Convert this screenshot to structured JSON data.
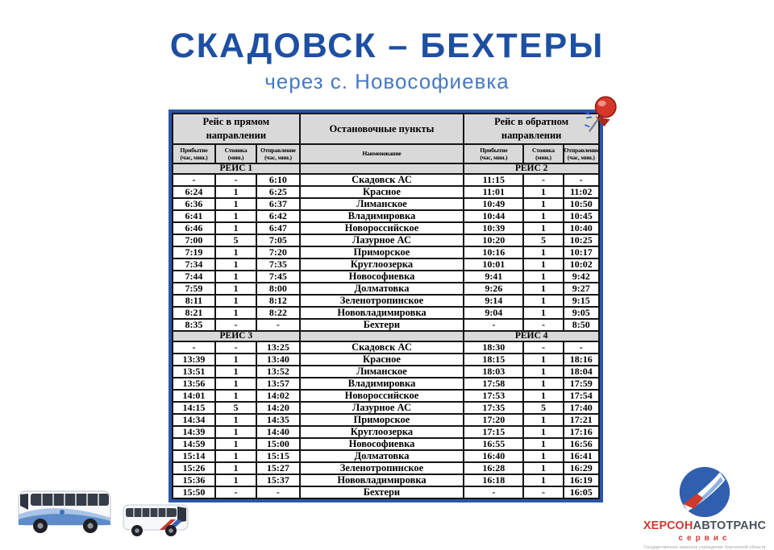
{
  "page": {
    "title": "СКАДОВСК – БЕХТЕРЫ",
    "subtitle": "через с. Новософиевка"
  },
  "table": {
    "header": {
      "forward": "Рейс в прямом\nнаправлении",
      "stops": "Остановочные пункты",
      "backward": "Рейс в обратном\nнаправлении",
      "sub": [
        "Прибытие\n(час, мин.)",
        "Стоянка\n(мин.)",
        "Отправление\n(час, мин.)",
        "Наименование",
        "Прибытие\n(час, мин.)",
        "Стоянка\n(мин.)",
        "Отправление\n(час, мин.)"
      ]
    },
    "sections": [
      {
        "forward_label": "РЕЙС 1",
        "backward_label": "РЕЙС 2",
        "rows": [
          [
            "-",
            "-",
            "6:10",
            "Скадовск АС",
            "11:15",
            "-",
            "-"
          ],
          [
            "6:24",
            "1",
            "6:25",
            "Красное",
            "11:01",
            "1",
            "11:02"
          ],
          [
            "6:36",
            "1",
            "6:37",
            "Лиманское",
            "10:49",
            "1",
            "10:50"
          ],
          [
            "6:41",
            "1",
            "6:42",
            "Владимировка",
            "10:44",
            "1",
            "10:45"
          ],
          [
            "6:46",
            "1",
            "6:47",
            "Новороссийское",
            "10:39",
            "1",
            "10:40"
          ],
          [
            "7:00",
            "5",
            "7:05",
            "Лазурное АС",
            "10:20",
            "5",
            "10:25"
          ],
          [
            "7:19",
            "1",
            "7:20",
            "Приморское",
            "10:16",
            "1",
            "10:17"
          ],
          [
            "7:34",
            "1",
            "7:35",
            "Круглоозерка",
            "10:01",
            "1",
            "10:02"
          ],
          [
            "7:44",
            "1",
            "7:45",
            "Новософиевка",
            "9:41",
            "1",
            "9:42"
          ],
          [
            "7:59",
            "1",
            "8:00",
            "Долматовка",
            "9:26",
            "1",
            "9:27"
          ],
          [
            "8:11",
            "1",
            "8:12",
            "Зеленотропинское",
            "9:14",
            "1",
            "9:15"
          ],
          [
            "8:21",
            "1",
            "8:22",
            "Нововладимировка",
            "9:04",
            "1",
            "9:05"
          ],
          [
            "8:35",
            "-",
            "-",
            "Бехтери",
            "-",
            "-",
            "8:50"
          ]
        ]
      },
      {
        "forward_label": "РЕЙС 3",
        "backward_label": "РЕЙС 4",
        "rows": [
          [
            "-",
            "-",
            "13:25",
            "Скадовск АС",
            "18:30",
            "-",
            "-"
          ],
          [
            "13:39",
            "1",
            "13:40",
            "Красное",
            "18:15",
            "1",
            "18:16"
          ],
          [
            "13:51",
            "1",
            "13:52",
            "Лиманское",
            "18:03",
            "1",
            "18:04"
          ],
          [
            "13:56",
            "1",
            "13:57",
            "Владимировка",
            "17:58",
            "1",
            "17:59"
          ],
          [
            "14:01",
            "1",
            "14:02",
            "Новороссийское",
            "17:53",
            "1",
            "17:54"
          ],
          [
            "14:15",
            "5",
            "14:20",
            "Лазурное АС",
            "17:35",
            "5",
            "17:40"
          ],
          [
            "14:34",
            "1",
            "14:35",
            "Приморское",
            "17:20",
            "1",
            "17:21"
          ],
          [
            "14:39",
            "1",
            "14:40",
            "Круглоозерка",
            "17:15",
            "1",
            "17:16"
          ],
          [
            "14:59",
            "1",
            "15:00",
            "Новософиевка",
            "16:55",
            "1",
            "16:56"
          ],
          [
            "15:14",
            "1",
            "15:15",
            "Долматовка",
            "16:40",
            "1",
            "16:41"
          ],
          [
            "15:26",
            "1",
            "15:27",
            "Зеленотропинское",
            "16:28",
            "1",
            "16:29"
          ],
          [
            "15:36",
            "1",
            "15:37",
            "Нововладимировка",
            "16:18",
            "1",
            "16:19"
          ],
          [
            "15:50",
            "-",
            "-",
            "Бехтери",
            "-",
            "-",
            "16:05"
          ]
        ]
      }
    ]
  },
  "logo": {
    "brand_red": "ХЕРСОН",
    "brand_dark": "АВТОТРАНС",
    "service_label": "сервис",
    "fine_print": "Государственное казенное учреждение Херсонской области"
  },
  "colors": {
    "title_blue": "#1d4fa3",
    "subtitle_blue": "#4579c5",
    "table_border_blue": "#2b55a8",
    "header_gray": "#d9d9d9",
    "grid_black": "#151515",
    "logo_red": "#d03a31",
    "logo_dark": "#49525c"
  }
}
